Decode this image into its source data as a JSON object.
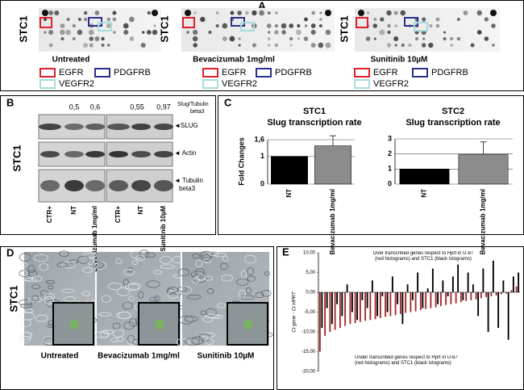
{
  "panels": {
    "a": {
      "label": "A",
      "row_label": "STC1",
      "captions": [
        "Untreated",
        "Bevacizumab 1mg/ml",
        "Sunitinib 10µM"
      ],
      "legend": [
        "EGFR",
        "PDGFRB",
        "VEGFR2"
      ]
    },
    "b": {
      "label": "B",
      "row_label": "STC1",
      "ratios": [
        "0,5",
        "0,6",
        "0,55",
        "0,97"
      ],
      "ratio_label": [
        "Slug/Tubulin",
        "beta3"
      ],
      "bands": [
        "◄SLUG",
        "◄ Actin",
        "◄ Tubulin",
        "beta3"
      ],
      "lanes": [
        "CTR+",
        "NT",
        "Bevacizumab 1mg/ml",
        "CTR+",
        "NT",
        "Sunitinib 10µM"
      ]
    },
    "c": {
      "label": "C"
    },
    "d": {
      "label": "D",
      "row_label": "STC1",
      "captions": [
        "Untreated",
        "Bevacizumab 1mg/ml",
        "Sunitinib 10µM"
      ]
    },
    "e": {
      "label": "E"
    }
  },
  "chart_data": [
    {
      "type": "bar",
      "title": "STC1",
      "subtitle": "Slug transcription rate",
      "y_label": "Fold Changes",
      "categories": [
        "NT",
        "Bevacizumab 1mg/ml"
      ],
      "values": [
        1,
        1.38
      ],
      "errors": [
        null,
        0.36
      ],
      "colors": [
        "#000000",
        "#8c8c8c"
      ],
      "ylim": [
        0,
        1.6
      ],
      "yticks": [
        0,
        1,
        {
          "value": 1.6,
          "label": "1,6"
        }
      ],
      "grid": true
    },
    {
      "type": "bar",
      "title": "STC2",
      "subtitle": "Slug transcription rate",
      "categories": [
        "NT",
        "Bevacizumab 1mg/ml"
      ],
      "values": [
        1,
        1.98
      ],
      "errors": [
        null,
        0.82
      ],
      "colors": [
        "#000000",
        "#8c8c8c"
      ],
      "ylim": [
        0,
        3
      ],
      "yticks": [
        0,
        1,
        2,
        3
      ],
      "grid": true
    },
    {
      "type": "multibar",
      "y_label": "Ct gene - Ct HPRT",
      "annotations": [
        "Over transcribed genes respect to Hprt in U-87 (red histograms) and STC1 (black istograms)",
        "Under transcribed genes respect to Hprt in U-87 (red histograms) and STC1 (black istograms)"
      ],
      "categories": [
        null,
        null,
        null,
        null,
        null,
        null,
        null,
        null,
        null,
        null,
        null,
        null,
        null,
        null,
        null,
        null,
        null,
        null,
        null,
        null,
        null,
        null,
        null,
        null,
        null,
        null,
        null,
        null,
        null,
        null,
        null,
        null,
        null,
        null,
        null,
        null,
        null,
        null,
        null,
        null
      ],
      "series": [
        {
          "color": "#a52a2a",
          "values": [
            -15,
            -11,
            -10,
            -9.5,
            -9,
            -8.5,
            -8,
            -7.8,
            -7.5,
            -7.2,
            -7,
            -6.8,
            -6.5,
            -6.2,
            -6,
            -5.8,
            -5.5,
            -5.2,
            -5,
            -4.8,
            -4.5,
            -4.2,
            -4,
            -3.8,
            -3.5,
            -3.2,
            -3,
            -2.8,
            -2.5,
            -2.2,
            -2,
            -1.8,
            -1.5,
            -1.2,
            -1,
            -0.8,
            -0.5,
            -0.3,
            0.5,
            1.5
          ]
        },
        {
          "color": "#000000",
          "values": [
            -9,
            -4,
            -8,
            -3,
            -6,
            2,
            -5,
            -7,
            -2,
            -4,
            3,
            -6,
            -1,
            -5,
            4,
            -3,
            -8,
            2,
            -2,
            5,
            -4,
            1,
            6,
            -3,
            3,
            -1,
            4,
            7,
            -2,
            5,
            2,
            -6,
            6,
            -10,
            8,
            -9,
            3,
            -12,
            4,
            5
          ]
        }
      ],
      "ylim": [
        -20,
        10
      ],
      "yticks": [
        {
          "value": -20,
          "label": "-20,00"
        },
        {
          "value": -15,
          "label": "-15,00"
        },
        {
          "value": -10,
          "label": "-10,00"
        },
        {
          "value": -5,
          "label": "-5,00"
        },
        {
          "value": 0,
          "label": "0,00"
        },
        {
          "value": 5,
          "label": "5,00"
        },
        {
          "value": 10,
          "label": "10,00"
        }
      ]
    }
  ]
}
